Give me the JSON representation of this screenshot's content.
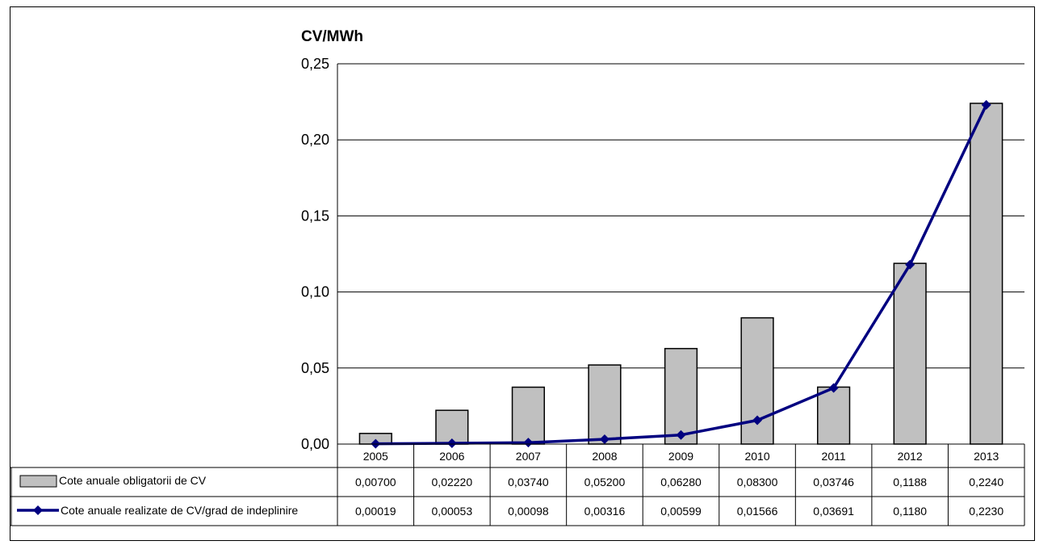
{
  "chart_data": {
    "type": "bar",
    "ylabel": "CV/MWh",
    "ylim": [
      0,
      0.25
    ],
    "yticks": [
      "0,00",
      "0,05",
      "0,10",
      "0,15",
      "0,20",
      "0,25"
    ],
    "categories": [
      "2005",
      "2006",
      "2007",
      "2008",
      "2009",
      "2010",
      "2011",
      "2012",
      "2013"
    ],
    "grid": true,
    "legend_placement": "data table below plot",
    "series": [
      {
        "name": "Cote anuale obligatorii de CV",
        "kind": "bar",
        "color": "#c0c0c0",
        "values": [
          0.007,
          0.0222,
          0.0374,
          0.052,
          0.0628,
          0.083,
          0.03746,
          0.1188,
          0.224
        ],
        "labels": [
          "0,00700",
          "0,02220",
          "0,03740",
          "0,05200",
          "0,06280",
          "0,08300",
          "0,03746",
          "0,1188",
          "0,2240"
        ]
      },
      {
        "name": "Cote anuale realizate de CV/grad de indeplinire",
        "kind": "line",
        "color": "#000080",
        "values": [
          0.00019,
          0.00053,
          0.00098,
          0.00316,
          0.00599,
          0.01566,
          0.03691,
          0.118,
          0.223
        ],
        "labels": [
          "0,00019",
          "0,00053",
          "0,00098",
          "0,00316",
          "0,00599",
          "0,01566",
          "0,03691",
          "0,1180",
          "0,2230"
        ]
      }
    ]
  }
}
